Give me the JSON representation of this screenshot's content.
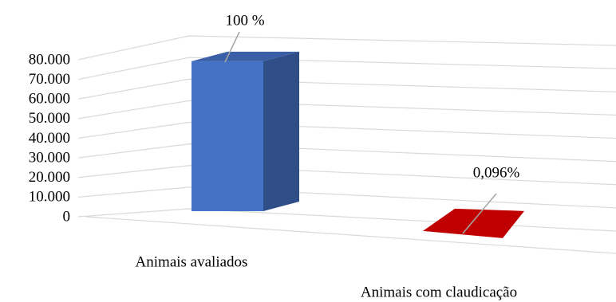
{
  "chart_data": {
    "type": "bar3d",
    "categories": [
      "Animais avaliados",
      "Animais com claudicação"
    ],
    "values": [
      78000,
      75
    ],
    "annotations": [
      "100 %",
      "0,096%"
    ],
    "colors": [
      "#4472c4",
      "#c00000"
    ],
    "ylim": [
      0,
      80000
    ],
    "yticks": [
      0,
      {
        "value": 10000,
        "label": "10.000"
      },
      {
        "value": 20000,
        "label": "20.000"
      },
      {
        "value": 30000,
        "label": "30.000"
      },
      {
        "value": 40000,
        "label": "40.000"
      },
      {
        "value": 50000,
        "label": "50.000"
      },
      {
        "value": 60000,
        "label": "60.000"
      },
      {
        "value": 70000,
        "label": "70.000"
      },
      {
        "value": 80000,
        "label": "80.000"
      }
    ],
    "grid": true
  }
}
